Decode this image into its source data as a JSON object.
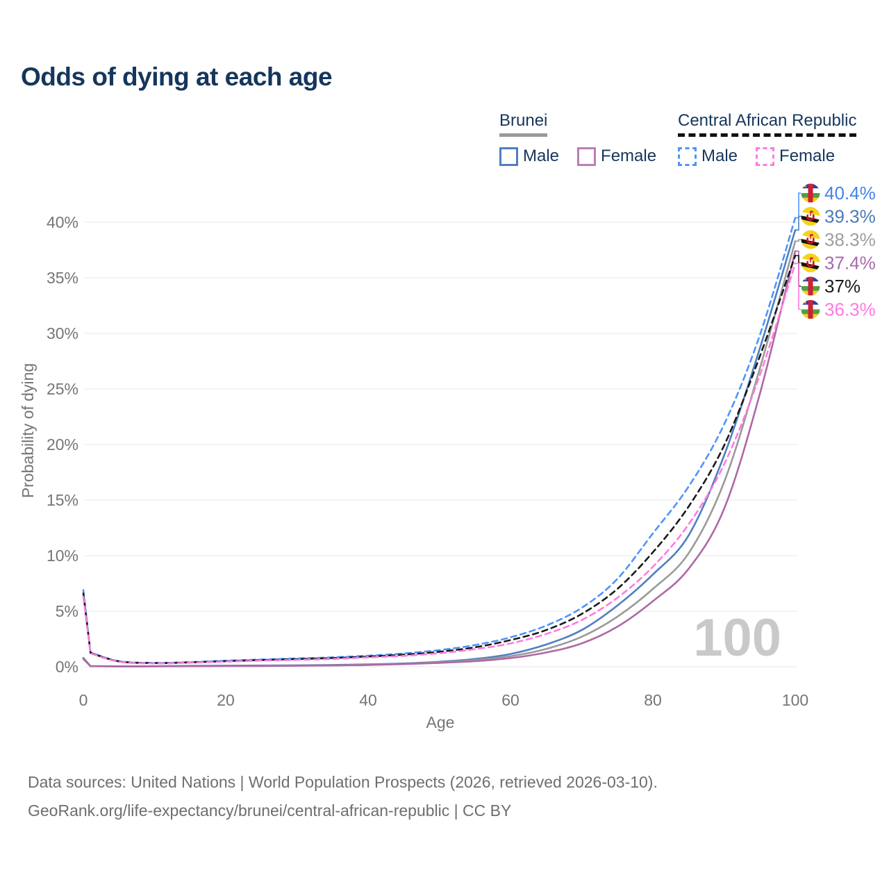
{
  "title": "Odds of dying at each age",
  "legend": {
    "brunei": {
      "title": "Brunei",
      "male_label": "Male",
      "female_label": "Female"
    },
    "car": {
      "title": "Central African Republic",
      "male_label": "Male",
      "female_label": "Female"
    }
  },
  "watermark": "100",
  "footer": {
    "line1": "Data sources: United Nations | World Population Prospects (2026, retrieved 2026-03-10).",
    "line2": "GeoRank.org/life-expectancy/brunei/central-african-republic | CC BY"
  },
  "chart_data": {
    "type": "line",
    "title": "Odds of dying at each age",
    "xlabel": "Age",
    "ylabel": "Probability of dying",
    "xlim": [
      0,
      100
    ],
    "ylim": [
      0,
      43
    ],
    "xticks": [
      0,
      20,
      40,
      60,
      80,
      100
    ],
    "yticks": [
      0,
      5,
      10,
      15,
      20,
      25,
      30,
      35,
      40
    ],
    "grid": "horizontal-only",
    "legend_position": "top-right",
    "axis_text_color": "#757575",
    "grid_color": "#ececec",
    "watermark_color": "#c9c9c9",
    "ages": [
      0,
      1,
      5,
      10,
      15,
      20,
      25,
      30,
      35,
      40,
      45,
      50,
      55,
      60,
      65,
      70,
      75,
      80,
      85,
      90,
      95,
      100
    ],
    "series": [
      {
        "id": "car-male",
        "name": "Central African Republic Male",
        "country": "Central African Republic",
        "sex": "Male",
        "style": "dashed",
        "color": "#4d94ff",
        "label_color": "#4284ea",
        "flag": "car",
        "end_label": "40.4%",
        "values": [
          6.9,
          1.3,
          0.5,
          0.35,
          0.42,
          0.55,
          0.65,
          0.75,
          0.85,
          1.0,
          1.2,
          1.5,
          1.95,
          2.65,
          3.7,
          5.3,
          7.9,
          12.0,
          16.2,
          21.8,
          29.8,
          40.4
        ]
      },
      {
        "id": "brunei-male",
        "name": "Brunei Male",
        "country": "Brunei",
        "sex": "Male",
        "style": "solid",
        "color": "#4e7fc1",
        "label_color": "#4a7ab5",
        "flag": "brunei",
        "end_label": "39.3%",
        "values": [
          0.8,
          0.06,
          0.04,
          0.05,
          0.08,
          0.1,
          0.11,
          0.13,
          0.16,
          0.21,
          0.3,
          0.45,
          0.7,
          1.15,
          2.0,
          3.3,
          5.5,
          8.3,
          11.8,
          19.0,
          28.6,
          39.3
        ]
      },
      {
        "id": "brunei-both",
        "name": "Brunei (both sexes)",
        "country": "Brunei",
        "sex": "Both",
        "style": "solid",
        "color": "#9a9a9a",
        "label_color": "#9e9e9e",
        "flag": "brunei",
        "end_label": "38.3%",
        "values": [
          0.75,
          0.055,
          0.035,
          0.045,
          0.065,
          0.08,
          0.09,
          0.11,
          0.14,
          0.18,
          0.27,
          0.4,
          0.6,
          0.95,
          1.6,
          2.7,
          4.5,
          7.0,
          10.2,
          16.6,
          26.8,
          38.3
        ]
      },
      {
        "id": "brunei-female",
        "name": "Brunei Female",
        "country": "Brunei",
        "sex": "Female",
        "style": "solid",
        "color": "#ae68a6",
        "label_color": "#a869ab",
        "flag": "brunei",
        "end_label": "37.4%",
        "values": [
          0.7,
          0.05,
          0.03,
          0.04,
          0.05,
          0.06,
          0.07,
          0.09,
          0.12,
          0.16,
          0.24,
          0.35,
          0.5,
          0.78,
          1.28,
          2.1,
          3.6,
          5.9,
          8.8,
          14.2,
          24.5,
          37.4
        ]
      },
      {
        "id": "car-both",
        "name": "Central African Republic (both sexes)",
        "country": "Central African Republic",
        "sex": "Both",
        "style": "dashed",
        "color": "#1a1a1a",
        "label_color": "#1a1a1a",
        "flag": "car",
        "end_label": "37%",
        "values": [
          6.6,
          1.25,
          0.48,
          0.33,
          0.39,
          0.5,
          0.6,
          0.69,
          0.78,
          0.92,
          1.09,
          1.35,
          1.75,
          2.4,
          3.3,
          4.75,
          7.0,
          10.3,
          14.4,
          19.9,
          27.9,
          37.0
        ]
      },
      {
        "id": "car-female",
        "name": "Central African Republic Female",
        "country": "Central African Republic",
        "sex": "Female",
        "style": "dashed",
        "color": "#ff7ae0",
        "label_color": "#ff7ae0",
        "flag": "car",
        "end_label": "36.3%",
        "values": [
          6.3,
          1.2,
          0.45,
          0.3,
          0.36,
          0.46,
          0.55,
          0.62,
          0.7,
          0.84,
          0.98,
          1.22,
          1.58,
          2.1,
          2.95,
          4.2,
          6.2,
          9.0,
          12.8,
          18.2,
          26.2,
          36.3
        ]
      }
    ]
  }
}
